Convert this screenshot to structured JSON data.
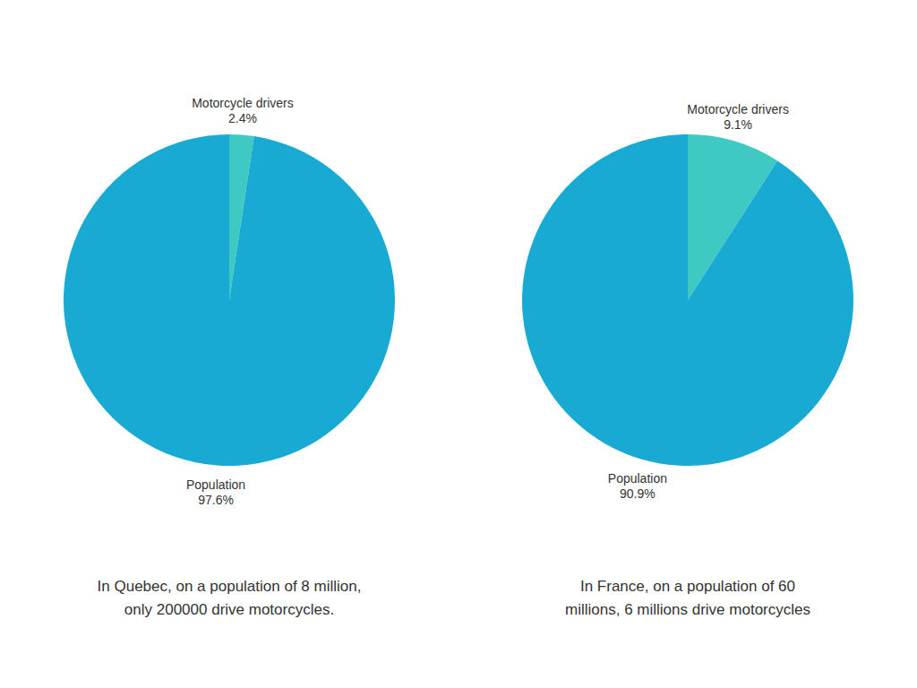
{
  "chart_data": [
    {
      "type": "pie",
      "categories": [
        "Motorcycle drivers",
        "Population"
      ],
      "values": [
        2.4,
        97.6
      ],
      "value_labels": [
        "2.4%",
        "97.6%"
      ],
      "colors": [
        "#3ecac2",
        "#19aad4"
      ],
      "data_labels": true,
      "annotations": [
        "In Quebec, on a population of 8 million,",
        "only 200000 drive motorcycles."
      ]
    },
    {
      "type": "pie",
      "categories": [
        "Motorcycle drivers",
        "Population"
      ],
      "values": [
        9.1,
        90.9
      ],
      "value_labels": [
        "9.1%",
        "90.9%"
      ],
      "colors": [
        "#3ecac2",
        "#19aad4"
      ],
      "data_labels": true,
      "annotations": [
        "In France, on a population of 60",
        "millions, 6 millions drive motorcycles"
      ]
    }
  ]
}
